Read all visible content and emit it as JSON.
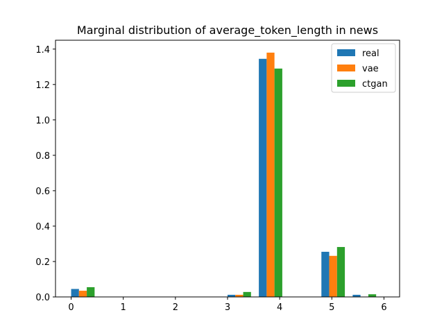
{
  "chart_data": {
    "type": "bar",
    "title": "Marginal distribution of average_token_length in news",
    "xlabel": "",
    "ylabel": "",
    "xlim": [
      -0.3,
      6.3
    ],
    "ylim": [
      0,
      1.45
    ],
    "xticks": [
      0,
      1,
      2,
      3,
      4,
      5,
      6
    ],
    "yticks": [
      0.0,
      0.2,
      0.4,
      0.6,
      0.8,
      1.0,
      1.2,
      1.4
    ],
    "ytick_labels": [
      "0.0",
      "0.2",
      "0.4",
      "0.6",
      "0.8",
      "1.0",
      "1.2",
      "1.4"
    ],
    "bin_width": 0.6,
    "bin_left_edges": [
      0.0,
      0.6,
      1.2,
      1.8,
      2.4,
      3.0,
      3.6,
      4.2,
      4.8,
      5.4
    ],
    "legend_position": "top-right",
    "grid": false,
    "series": [
      {
        "name": "real",
        "color": "#1f77b4",
        "values": [
          0.045,
          0.0,
          0.0,
          0.0,
          0.0,
          0.012,
          1.345,
          0.0,
          0.255,
          0.012
        ]
      },
      {
        "name": "vae",
        "color": "#ff7f0e",
        "values": [
          0.035,
          0.0,
          0.0,
          0.0,
          0.0,
          0.012,
          1.38,
          0.0,
          0.232,
          0.0
        ]
      },
      {
        "name": "ctgan",
        "color": "#2ca02c",
        "values": [
          0.055,
          0.0,
          0.0,
          0.0,
          0.0,
          0.028,
          1.29,
          0.0,
          0.282,
          0.015
        ]
      }
    ]
  }
}
